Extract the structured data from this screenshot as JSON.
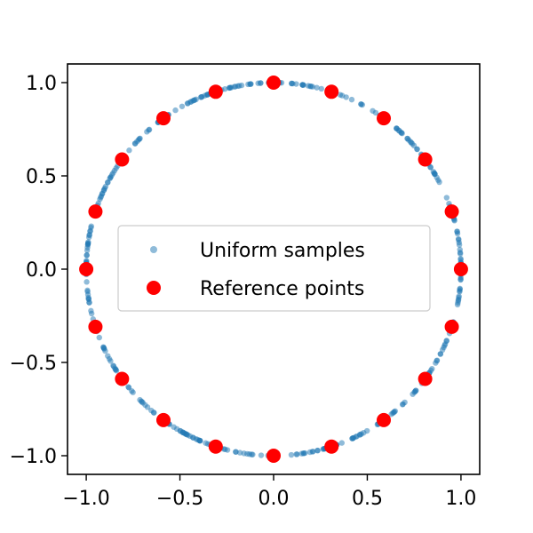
{
  "chart_data": {
    "type": "scatter",
    "title": "",
    "xlabel": "",
    "ylabel": "",
    "xlim": [
      -1.1,
      1.1
    ],
    "ylim": [
      -1.1,
      1.1
    ],
    "grid": false,
    "legend_position": "center",
    "x_ticks": [
      "−1.0",
      "−0.5",
      "0.0",
      "0.5",
      "1.0"
    ],
    "x_tick_values": [
      -1.0,
      -0.5,
      0.0,
      0.5,
      1.0
    ],
    "y_ticks": [
      "−1.0",
      "−0.5",
      "0.0",
      "0.5",
      "1.0"
    ],
    "y_tick_values": [
      -1.0,
      -0.5,
      0.0,
      0.5,
      1.0
    ],
    "series": [
      {
        "name": "Uniform samples",
        "color": "#1f77b4",
        "marker": "small-circle",
        "opacity": 0.5,
        "description_count": 400,
        "radius": 1.0
      },
      {
        "name": "Reference points",
        "color": "#ff0000",
        "marker": "large-circle",
        "x": [
          1.0,
          0.951,
          0.809,
          0.588,
          0.309,
          0.0,
          -0.309,
          -0.588,
          -0.809,
          -0.951,
          -1.0,
          -0.951,
          -0.809,
          -0.588,
          -0.309,
          0.0,
          0.309,
          0.588,
          0.809,
          0.951
        ],
        "y": [
          0.0,
          0.309,
          0.588,
          0.809,
          0.951,
          1.0,
          0.951,
          0.809,
          0.588,
          0.309,
          0.0,
          -0.309,
          -0.588,
          -0.809,
          -0.951,
          -1.0,
          -0.951,
          -0.809,
          -0.588,
          -0.309
        ]
      }
    ]
  }
}
